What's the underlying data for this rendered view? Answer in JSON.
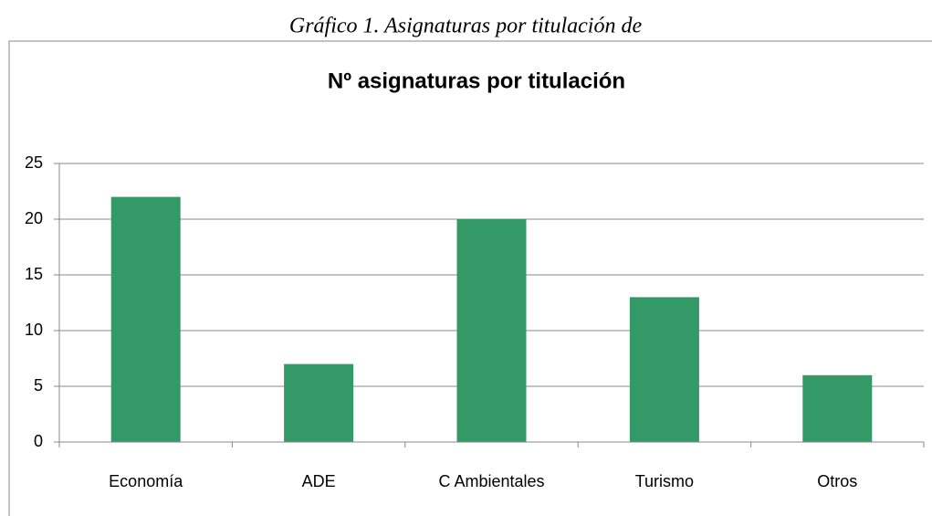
{
  "caption": "Gráfico 1. Asignaturas por titulación de",
  "chart_data": {
    "type": "bar",
    "title": "Nº asignaturas por titulación",
    "categories": [
      "Economía",
      "ADE",
      "C Ambientales",
      "Turismo",
      "Otros"
    ],
    "values": [
      22,
      7,
      20,
      13,
      6
    ],
    "color": "#339966",
    "ylim": [
      0,
      25
    ],
    "yticks": [
      0,
      5,
      10,
      15,
      20,
      25
    ],
    "grid": true
  }
}
